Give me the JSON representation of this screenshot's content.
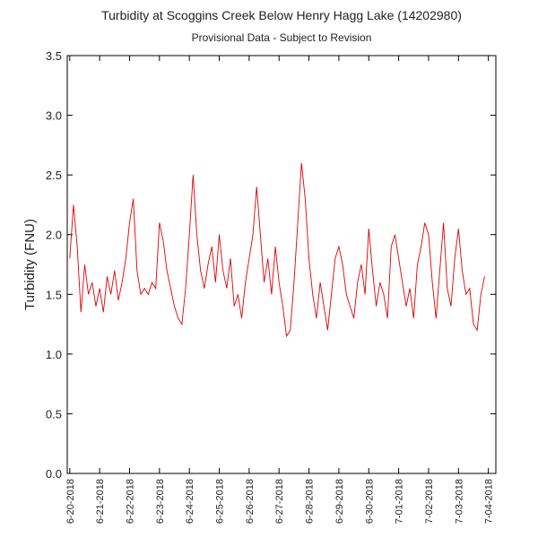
{
  "chart_data": {
    "type": "line",
    "title": "Turbidity at Scoggins Creek Below Henry Hagg Lake (14202980)",
    "subtitle": "Provisional Data - Subject to Revision",
    "y_label": "Turbidity (FNU)",
    "x": [
      "2018-06-20T00:00",
      "2018-06-20T03:00",
      "2018-06-20T06:00",
      "2018-06-20T09:00",
      "2018-06-20T12:00",
      "2018-06-20T15:00",
      "2018-06-20T18:00",
      "2018-06-20T21:00",
      "2018-06-21T00:00",
      "2018-06-21T03:00",
      "2018-06-21T06:00",
      "2018-06-21T09:00",
      "2018-06-21T12:00",
      "2018-06-21T15:00",
      "2018-06-21T18:00",
      "2018-06-21T21:00",
      "2018-06-22T00:00",
      "2018-06-22T03:00",
      "2018-06-22T06:00",
      "2018-06-22T09:00",
      "2018-06-22T12:00",
      "2018-06-22T15:00",
      "2018-06-22T18:00",
      "2018-06-22T21:00",
      "2018-06-23T00:00",
      "2018-06-23T03:00",
      "2018-06-23T06:00",
      "2018-06-23T09:00",
      "2018-06-23T12:00",
      "2018-06-23T15:00",
      "2018-06-23T18:00",
      "2018-06-23T21:00",
      "2018-06-24T00:00",
      "2018-06-24T03:00",
      "2018-06-24T06:00",
      "2018-06-24T09:00",
      "2018-06-24T12:00",
      "2018-06-24T15:00",
      "2018-06-24T18:00",
      "2018-06-24T21:00",
      "2018-06-25T00:00",
      "2018-06-25T03:00",
      "2018-06-25T06:00",
      "2018-06-25T09:00",
      "2018-06-25T12:00",
      "2018-06-25T15:00",
      "2018-06-25T18:00",
      "2018-06-25T21:00",
      "2018-06-26T00:00",
      "2018-06-26T03:00",
      "2018-06-26T06:00",
      "2018-06-26T09:00",
      "2018-06-26T12:00",
      "2018-06-26T15:00",
      "2018-06-26T18:00",
      "2018-06-26T21:00",
      "2018-06-27T00:00",
      "2018-06-27T03:00",
      "2018-06-27T06:00",
      "2018-06-27T09:00",
      "2018-06-27T12:00",
      "2018-06-27T15:00",
      "2018-06-27T18:00",
      "2018-06-27T21:00",
      "2018-06-28T00:00",
      "2018-06-28T03:00",
      "2018-06-28T06:00",
      "2018-06-28T09:00",
      "2018-06-28T12:00",
      "2018-06-28T15:00",
      "2018-06-28T18:00",
      "2018-06-28T21:00",
      "2018-06-29T00:00",
      "2018-06-29T03:00",
      "2018-06-29T06:00",
      "2018-06-29T09:00",
      "2018-06-29T12:00",
      "2018-06-29T15:00",
      "2018-06-29T18:00",
      "2018-06-29T21:00",
      "2018-06-30T00:00",
      "2018-06-30T03:00",
      "2018-06-30T06:00",
      "2018-06-30T09:00",
      "2018-06-30T12:00",
      "2018-06-30T15:00",
      "2018-06-30T18:00",
      "2018-06-30T21:00",
      "2018-07-01T00:00",
      "2018-07-01T03:00",
      "2018-07-01T06:00",
      "2018-07-01T09:00",
      "2018-07-01T12:00",
      "2018-07-01T15:00",
      "2018-07-01T18:00",
      "2018-07-01T21:00",
      "2018-07-02T00:00",
      "2018-07-02T03:00",
      "2018-07-02T06:00",
      "2018-07-02T09:00",
      "2018-07-02T12:00",
      "2018-07-02T15:00",
      "2018-07-02T18:00",
      "2018-07-02T21:00",
      "2018-07-03T00:00",
      "2018-07-03T03:00",
      "2018-07-03T06:00",
      "2018-07-03T09:00",
      "2018-07-03T12:00",
      "2018-07-03T15:00",
      "2018-07-03T18:00",
      "2018-07-03T21:00"
    ],
    "values": [
      1.8,
      2.25,
      1.9,
      1.35,
      1.75,
      1.5,
      1.6,
      1.4,
      1.55,
      1.35,
      1.65,
      1.5,
      1.7,
      1.45,
      1.6,
      1.8,
      2.1,
      2.3,
      1.7,
      1.5,
      1.55,
      1.5,
      1.6,
      1.55,
      2.1,
      1.95,
      1.7,
      1.55,
      1.4,
      1.3,
      1.25,
      1.55,
      2.0,
      2.5,
      2.0,
      1.7,
      1.55,
      1.75,
      1.9,
      1.6,
      2.0,
      1.7,
      1.55,
      1.8,
      1.4,
      1.5,
      1.3,
      1.6,
      1.8,
      2.0,
      2.4,
      2.0,
      1.6,
      1.8,
      1.5,
      1.9,
      1.6,
      1.4,
      1.15,
      1.2,
      1.6,
      2.1,
      2.6,
      2.3,
      1.8,
      1.5,
      1.3,
      1.6,
      1.4,
      1.2,
      1.5,
      1.8,
      1.9,
      1.75,
      1.5,
      1.4,
      1.3,
      1.6,
      1.75,
      1.5,
      2.05,
      1.7,
      1.4,
      1.6,
      1.5,
      1.3,
      1.9,
      2.0,
      1.8,
      1.6,
      1.4,
      1.55,
      1.3,
      1.75,
      1.9,
      2.1,
      2.0,
      1.6,
      1.3,
      1.7,
      2.1,
      1.55,
      1.4,
      1.8,
      2.05,
      1.7,
      1.5,
      1.55,
      1.25,
      1.2,
      1.5,
      1.65
    ],
    "color": "#e00000",
    "xlim": [
      "2018-06-19T22:00",
      "2018-07-04T06:00"
    ],
    "xticks": [
      {
        "value": "2018-06-20",
        "label": "6-20-2018"
      },
      {
        "value": "2018-06-21",
        "label": "6-21-2018"
      },
      {
        "value": "2018-06-22",
        "label": "6-22-2018"
      },
      {
        "value": "2018-06-23",
        "label": "6-23-2018"
      },
      {
        "value": "2018-06-24",
        "label": "6-24-2018"
      },
      {
        "value": "2018-06-25",
        "label": "6-25-2018"
      },
      {
        "value": "2018-06-26",
        "label": "6-26-2018"
      },
      {
        "value": "2018-06-27",
        "label": "6-27-2018"
      },
      {
        "value": "2018-06-28",
        "label": "6-28-2018"
      },
      {
        "value": "2018-06-29",
        "label": "6-29-2018"
      },
      {
        "value": "2018-06-30",
        "label": "6-30-2018"
      },
      {
        "value": "2018-07-01",
        "label": "7-01-2018"
      },
      {
        "value": "2018-07-02",
        "label": "7-02-2018"
      },
      {
        "value": "2018-07-03",
        "label": "7-03-2018"
      },
      {
        "value": "2018-07-04",
        "label": "7-04-2018"
      }
    ],
    "ylim": [
      0,
      3.5
    ],
    "yticks": [
      {
        "value": 0,
        "label": "0.0"
      },
      0.5,
      {
        "value": 1,
        "label": "1.0"
      },
      1.5,
      {
        "value": 2,
        "label": "2.0"
      },
      2.5,
      {
        "value": 3,
        "label": "3.0"
      },
      3.5
    ]
  }
}
